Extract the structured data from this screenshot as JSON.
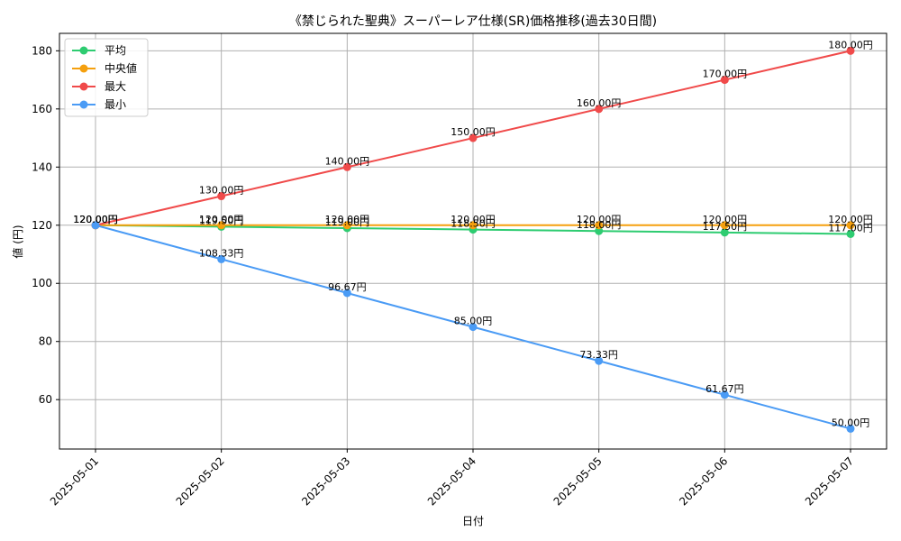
{
  "chart_data": {
    "type": "line",
    "title": "《禁じられた聖典》スーパーレア仕様(SR)価格推移(過去30日間)",
    "xlabel": "日付",
    "ylabel": "値 (円)",
    "categories": [
      "2025-05-01",
      "2025-05-02",
      "2025-05-03",
      "2025-05-04",
      "2025-05-05",
      "2025-05-06",
      "2025-05-07"
    ],
    "ylim": [
      43,
      186
    ],
    "yticks": [
      60,
      80,
      100,
      120,
      140,
      160,
      180
    ],
    "grid": true,
    "legend_position": "top-left",
    "series": [
      {
        "name": "平均",
        "color": "#2ecc71",
        "values": [
          120.0,
          119.5,
          119.0,
          118.5,
          118.0,
          117.5,
          117.0
        ],
        "labels": [
          "120.00円",
          "119.50円",
          "119.00円",
          "118.50円",
          "118.00円",
          "117.50円",
          "117.00円"
        ]
      },
      {
        "name": "中央値",
        "color": "#f5a00e",
        "values": [
          120.0,
          120.0,
          120.0,
          120.0,
          120.0,
          120.0,
          120.0
        ],
        "labels": [
          "120.00円",
          "120.00円",
          "120.00円",
          "120.00円",
          "120.00円",
          "120.00円",
          "120.00円"
        ]
      },
      {
        "name": "最大",
        "color": "#f04a4a",
        "values": [
          120.0,
          130.0,
          140.0,
          150.0,
          160.0,
          170.0,
          180.0
        ],
        "labels": [
          "120.00円",
          "130.00円",
          "140.00円",
          "150.00円",
          "160.00円",
          "170.00円",
          "180.00円"
        ]
      },
      {
        "name": "最小",
        "color": "#4a9bf5",
        "values": [
          120.0,
          108.33,
          96.67,
          85.0,
          73.33,
          61.67,
          50.0
        ],
        "labels": [
          "120.00円",
          "108.33円",
          "96.67円",
          "85.00円",
          "73.33円",
          "61.67円",
          "50.00円"
        ]
      }
    ]
  }
}
